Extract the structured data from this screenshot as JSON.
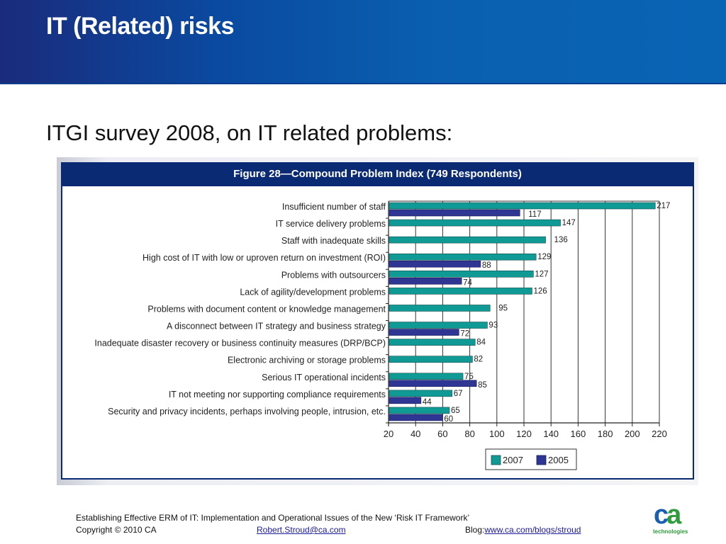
{
  "header": {
    "title": "IT (Related) risks"
  },
  "subtitle": "ITGI survey 2008, on IT related problems:",
  "figure": {
    "title": "Figure 28—Compound Problem Index (749 Respondents)"
  },
  "colors": {
    "series_2007": "#0f9a96",
    "series_2005": "#2e3592",
    "header_dark": "#1a2b7c",
    "header_light": "#0a64b4",
    "figure_bar": "#0b2a74"
  },
  "chart_data": {
    "type": "bar",
    "orientation": "horizontal",
    "title": "Figure 28—Compound Problem Index (749 Respondents)",
    "xlabel": "",
    "ylabel": "",
    "xlim": [
      20,
      220
    ],
    "xticks": [
      20,
      40,
      60,
      80,
      100,
      120,
      140,
      160,
      180,
      200,
      220
    ],
    "grid": true,
    "legend_position": "bottom-center",
    "categories": [
      "Insufficient number of staff",
      "IT service delivery problems",
      "Staff with inadequate skills",
      "High cost of IT with low or uproven return on investment (ROI)",
      "Problems with outsourcers",
      "Lack of agility/development problems",
      "Problems with document content or knowledge management",
      "A disconnect between IT strategy and business strategy",
      "Inadequate disaster recovery or business continuity measures (DRP/BCP)",
      "Electronic archiving or storage problems",
      "Serious IT operational incidents",
      "IT not meeting nor supporting compliance requirements",
      "Security and privacy incidents, perhaps involving people, intrusion, etc."
    ],
    "series": [
      {
        "name": "2007",
        "color": "#0f9a96",
        "values": [
          217,
          147,
          136,
          129,
          127,
          126,
          95,
          93,
          84,
          82,
          75,
          67,
          65
        ]
      },
      {
        "name": "2005",
        "color": "#2e3592",
        "values": [
          117,
          null,
          null,
          88,
          74,
          null,
          null,
          72,
          null,
          null,
          85,
          44,
          60
        ]
      }
    ]
  },
  "footer": {
    "line1": "Establishing Effective ERM of IT: Implementation and Operational Issues of the New ‘Risk IT Framework’",
    "copyright": "Copyright © 2010 CA",
    "email": "Robert.Stroud@ca.com",
    "blog_label": "Blog:",
    "blog_url": "www.ca.com/blogs/stroud"
  },
  "logo": {
    "mark_c": "c",
    "mark_a": "a",
    "tagline": "technologies"
  }
}
